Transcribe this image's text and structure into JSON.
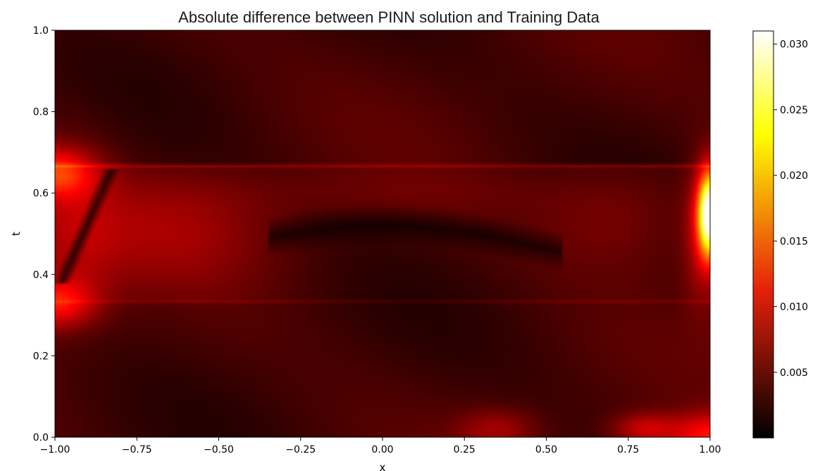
{
  "chart_data": {
    "type": "heatmap",
    "title": "Absolute difference between PINN solution and Training Data",
    "xlabel": "x",
    "ylabel": "t",
    "xlim": [
      -1.0,
      1.0
    ],
    "ylim": [
      0.0,
      1.0
    ],
    "x_ticks": [
      "−1.00",
      "−0.75",
      "−0.50",
      "−0.25",
      "0.00",
      "0.25",
      "0.50",
      "0.75",
      "1.00"
    ],
    "x_tick_values": [
      -1.0,
      -0.75,
      -0.5,
      -0.25,
      0.0,
      0.25,
      0.5,
      0.75,
      1.0
    ],
    "y_ticks": [
      "0.0",
      "0.2",
      "0.4",
      "0.6",
      "0.8",
      "1.0"
    ],
    "y_tick_values": [
      0.0,
      0.2,
      0.4,
      0.6,
      0.8,
      1.0
    ],
    "colormap": "hot",
    "colorbar": {
      "range": [
        0.0,
        0.031
      ],
      "ticks": [
        "0.005",
        "0.010",
        "0.015",
        "0.020",
        "0.025",
        "0.030"
      ],
      "tick_values": [
        0.005,
        0.01,
        0.015,
        0.02,
        0.025,
        0.03
      ]
    },
    "features": {
      "interface_t": [
        0.333,
        0.667
      ],
      "peak": {
        "x": 1.0,
        "t": 0.55,
        "value": 0.031
      },
      "secondary_peaks": [
        {
          "x": -1.0,
          "t": 0.65,
          "value": 0.012
        },
        {
          "x": -1.0,
          "t": 0.33,
          "value": 0.011
        },
        {
          "x": 1.0,
          "t": 0.0,
          "value": 0.012
        }
      ]
    },
    "grid": false,
    "legend": "none"
  }
}
